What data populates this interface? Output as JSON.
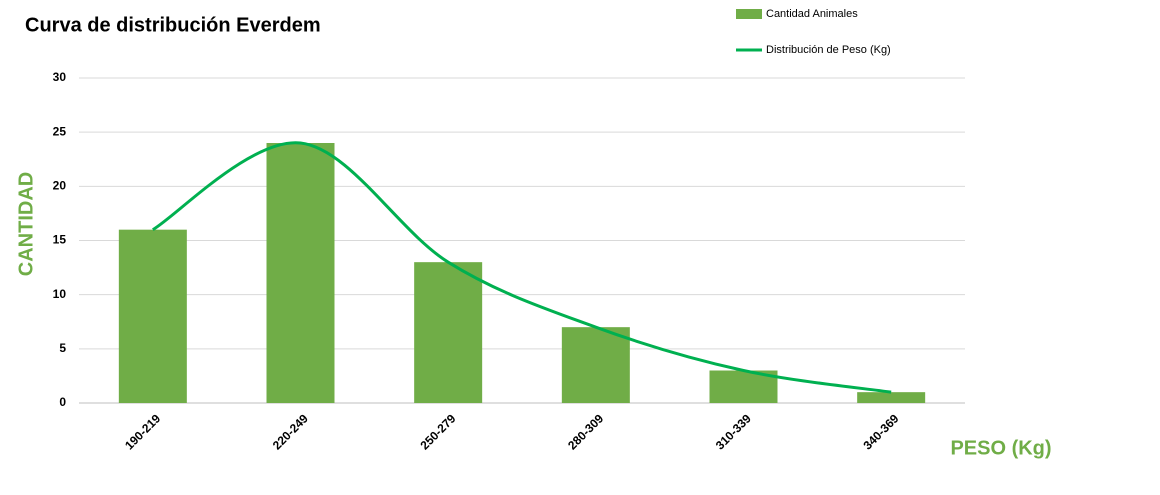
{
  "chart_data": {
    "type": "bar",
    "title": "Curva de distribución Everdem",
    "x_label": "PESO (Kg)",
    "y_label": "CANTIDAD",
    "categories": [
      "190-219",
      "220-249",
      "250-279",
      "280-309",
      "310-339",
      "340-369"
    ],
    "series": [
      {
        "name": "Cantidad Animales",
        "type": "bar",
        "color": "#70ad47",
        "values": [
          16,
          24,
          13,
          7,
          3,
          1
        ]
      },
      {
        "name": "Distribución de Peso (Kg)",
        "type": "line",
        "color": "#00b050",
        "values": [
          16,
          24,
          13,
          7,
          3,
          1
        ]
      }
    ],
    "ylim": [
      0,
      30
    ],
    "yticks": [
      0,
      5,
      10,
      15,
      20,
      25,
      30
    ],
    "grid": true,
    "legend": "top-right"
  }
}
